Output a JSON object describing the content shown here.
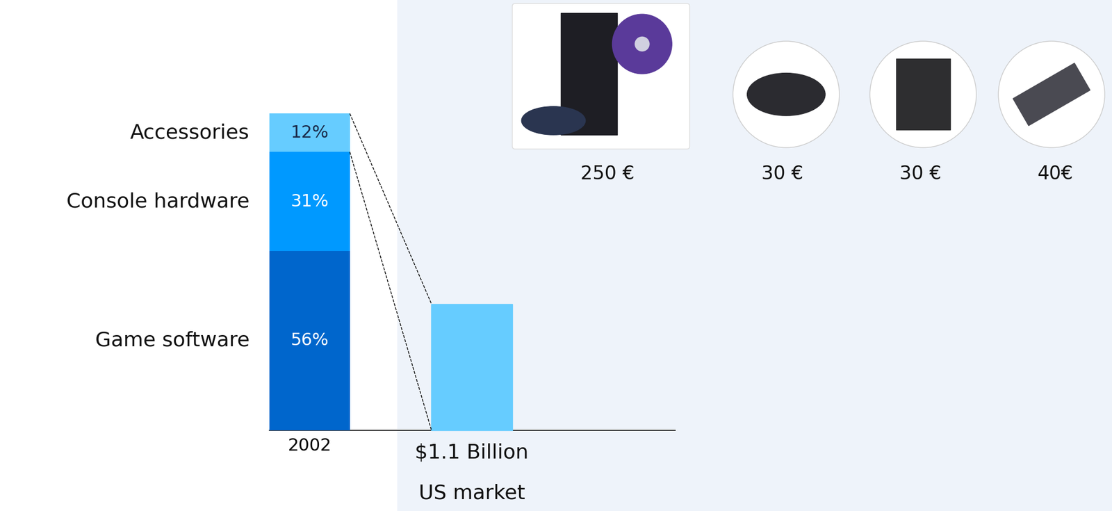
{
  "chart_data": {
    "type": "bar",
    "stacked": true,
    "categories": [
      "2002"
    ],
    "series": [
      {
        "name": "Game software",
        "color": "#0066CC",
        "values": [
          56
        ],
        "value_labels": [
          "56%"
        ]
      },
      {
        "name": "Console hardware",
        "color": "#0099FF",
        "values": [
          31
        ],
        "value_labels": [
          "31%"
        ]
      },
      {
        "name": "Accessories",
        "color": "#66CCFF",
        "values": [
          12
        ],
        "value_labels": [
          "12%"
        ]
      }
    ],
    "ylim": [
      0,
      99
    ],
    "yticks": [],
    "data_labels": true,
    "tick_labels": "x",
    "annotations": [
      "$1.1 Billion",
      "US market"
    ],
    "price_labels": [
      "250 €",
      "30 €",
      "30 €",
      "40€"
    ]
  }
}
